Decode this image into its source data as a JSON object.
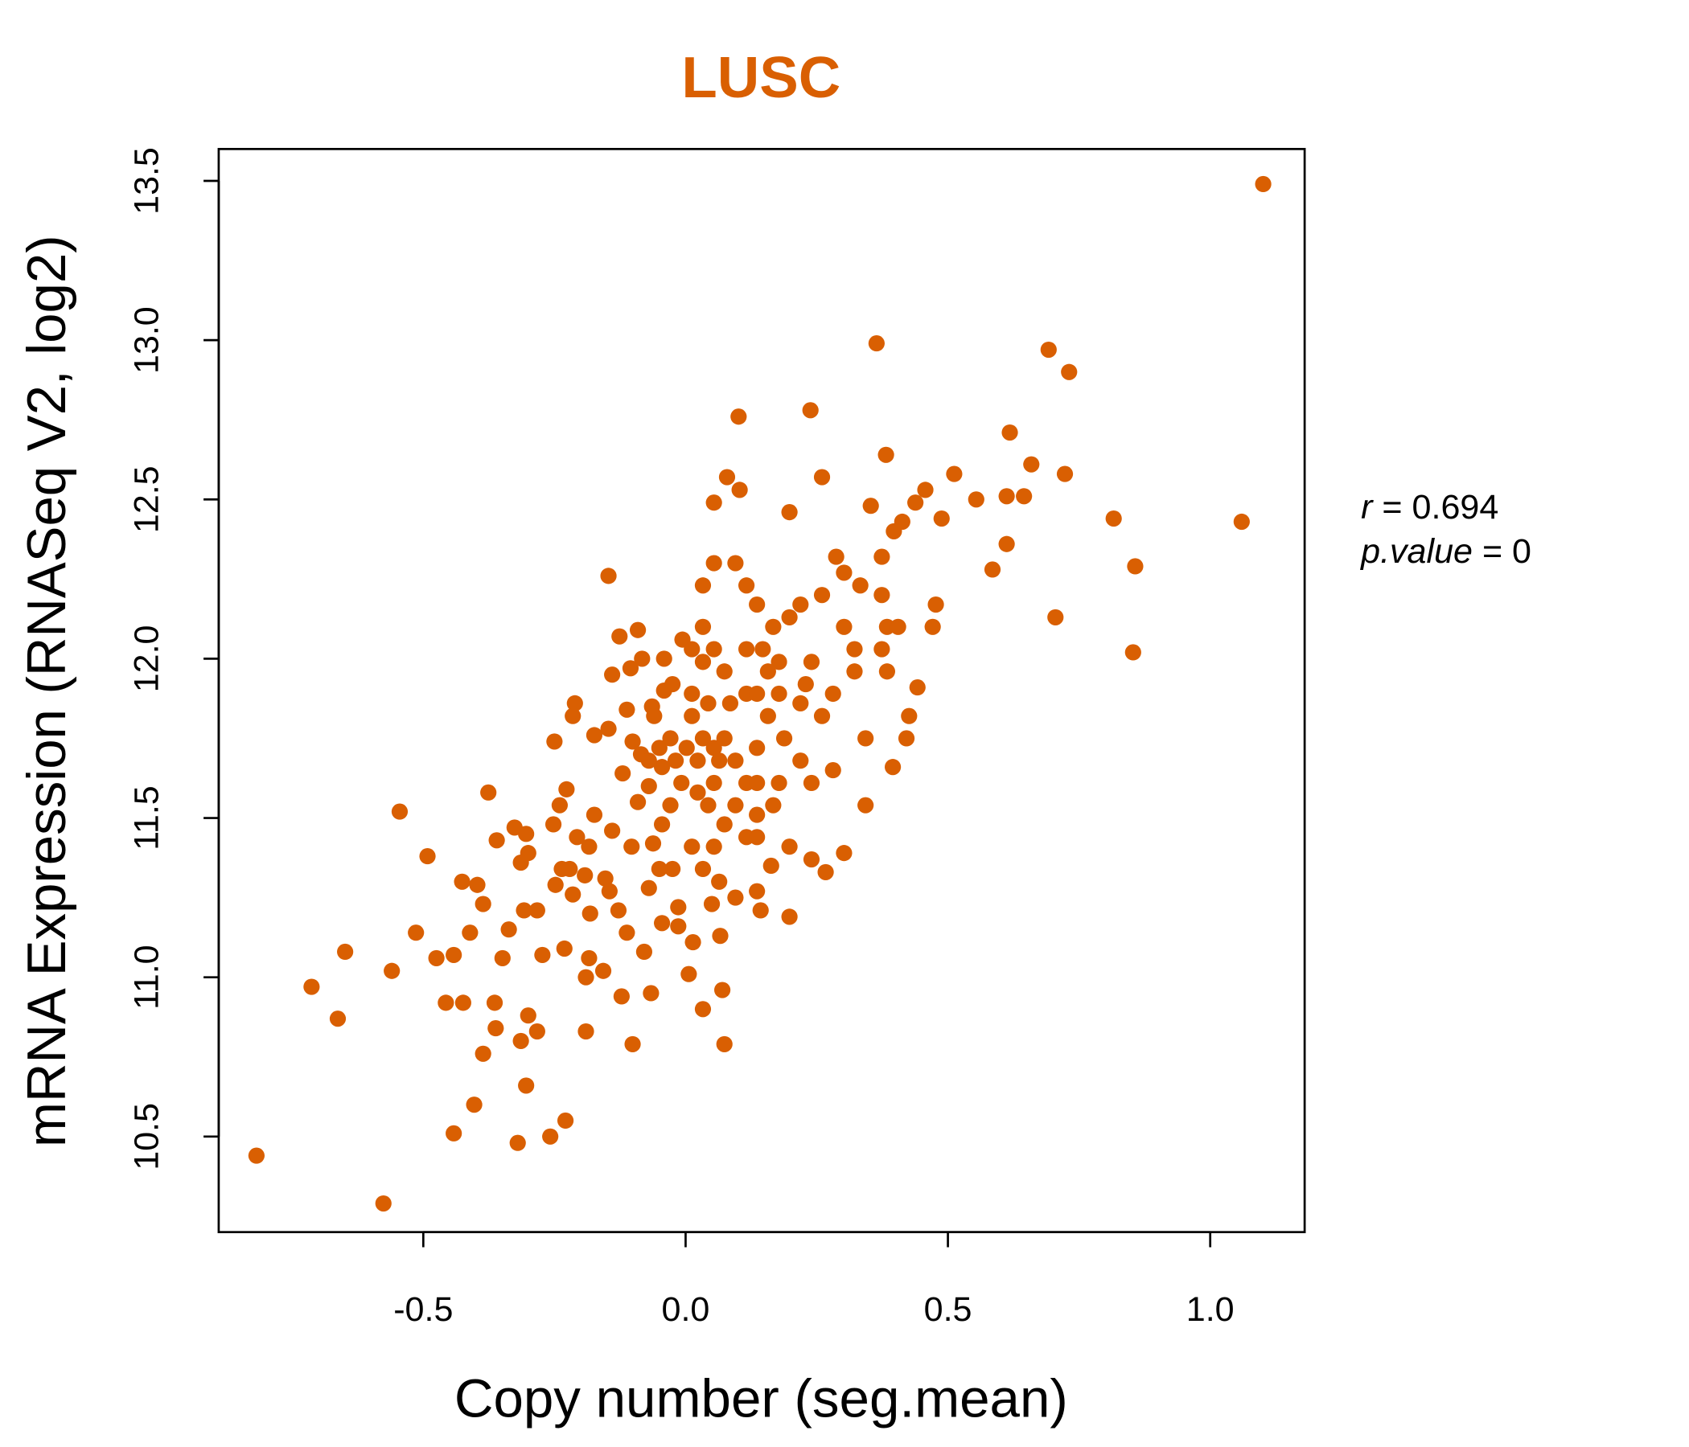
{
  "chart_data": {
    "type": "scatter",
    "title": "LUSC",
    "xlabel": "Copy number (seg.mean)",
    "ylabel": "mRNA Expression (RNASeq V2, log2)",
    "xlim": [
      -0.89,
      1.18
    ],
    "ylim": [
      10.2,
      13.6
    ],
    "xticks": [
      -0.5,
      0.0,
      0.5,
      1.0
    ],
    "xtick_labels": [
      "-0.5",
      "0.0",
      "0.5",
      "1.0"
    ],
    "yticks": [
      10.5,
      11.0,
      11.5,
      12.0,
      12.5,
      13.0,
      13.5
    ],
    "ytick_labels": [
      "10.5",
      "11.0",
      "11.5",
      "12.0",
      "12.5",
      "13.0",
      "13.5"
    ],
    "grid": false,
    "color": "#d95f02",
    "annotations": {
      "r_label": "r",
      "r_value": "= 0.694",
      "p_label": "p.value",
      "p_value": "= 0"
    },
    "points": [
      [
        1.101,
        13.49
      ],
      [
        0.364,
        12.99
      ],
      [
        0.692,
        12.97
      ],
      [
        0.731,
        12.9
      ],
      [
        0.101,
        12.76
      ],
      [
        0.238,
        12.78
      ],
      [
        0.618,
        12.71
      ],
      [
        0.659,
        12.61
      ],
      [
        0.723,
        12.58
      ],
      [
        0.512,
        12.58
      ],
      [
        0.382,
        12.64
      ],
      [
        0.26,
        12.57
      ],
      [
        0.079,
        12.57
      ],
      [
        0.457,
        12.53
      ],
      [
        0.612,
        12.51
      ],
      [
        0.645,
        12.51
      ],
      [
        0.554,
        12.5
      ],
      [
        0.438,
        12.49
      ],
      [
        0.353,
        12.48
      ],
      [
        0.816,
        12.44
      ],
      [
        1.06,
        12.43
      ],
      [
        0.488,
        12.44
      ],
      [
        0.413,
        12.43
      ],
      [
        0.397,
        12.4
      ],
      [
        0.198,
        12.46
      ],
      [
        0.054,
        12.49
      ],
      [
        0.103,
        12.53
      ],
      [
        0.612,
        12.36
      ],
      [
        0.857,
        12.29
      ],
      [
        0.585,
        12.28
      ],
      [
        0.705,
        12.13
      ],
      [
        0.853,
        12.02
      ],
      [
        0.477,
        12.17
      ],
      [
        0.471,
        12.1
      ],
      [
        -0.147,
        12.26
      ],
      [
        0.374,
        12.32
      ],
      [
        0.287,
        12.32
      ],
      [
        -0.818,
        10.44
      ],
      [
        -0.576,
        10.29
      ],
      [
        -0.713,
        10.97
      ],
      [
        -0.663,
        10.87
      ],
      [
        -0.649,
        11.08
      ],
      [
        -0.56,
        11.02
      ],
      [
        -0.545,
        11.52
      ],
      [
        -0.492,
        11.38
      ],
      [
        -0.514,
        11.14
      ],
      [
        -0.475,
        11.06
      ],
      [
        -0.442,
        10.51
      ],
      [
        -0.403,
        10.6
      ],
      [
        -0.32,
        10.48
      ],
      [
        -0.258,
        10.5
      ],
      [
        -0.229,
        10.55
      ],
      [
        -0.304,
        10.66
      ],
      [
        -0.386,
        10.76
      ],
      [
        -0.314,
        10.8
      ],
      [
        -0.283,
        10.83
      ],
      [
        -0.362,
        10.84
      ],
      [
        -0.457,
        10.92
      ],
      [
        -0.424,
        10.92
      ],
      [
        -0.364,
        10.92
      ],
      [
        -0.3,
        10.88
      ],
      [
        -0.19,
        10.83
      ],
      [
        -0.101,
        10.79
      ],
      [
        0.074,
        10.79
      ],
      [
        -0.066,
        10.95
      ],
      [
        -0.122,
        10.94
      ],
      [
        0.033,
        10.9
      ],
      [
        0.07,
        10.96
      ],
      [
        0.006,
        11.01
      ],
      [
        -0.19,
        11.0
      ],
      [
        -0.157,
        11.02
      ],
      [
        -0.442,
        11.07
      ],
      [
        -0.349,
        11.06
      ],
      [
        -0.411,
        11.14
      ],
      [
        -0.337,
        11.15
      ],
      [
        -0.273,
        11.07
      ],
      [
        -0.231,
        11.09
      ],
      [
        -0.184,
        11.06
      ],
      [
        -0.079,
        11.08
      ],
      [
        0.014,
        11.11
      ],
      [
        0.066,
        11.13
      ],
      [
        -0.426,
        11.3
      ],
      [
        -0.397,
        11.29
      ],
      [
        -0.386,
        11.23
      ],
      [
        -0.36,
        11.43
      ],
      [
        -0.376,
        11.58
      ],
      [
        -0.326,
        11.47
      ],
      [
        -0.304,
        11.45
      ],
      [
        -0.3,
        11.39
      ],
      [
        -0.314,
        11.36
      ],
      [
        -0.308,
        11.21
      ],
      [
        -0.283,
        11.21
      ],
      [
        -0.252,
        11.48
      ],
      [
        -0.24,
        11.54
      ],
      [
        -0.227,
        11.59
      ],
      [
        -0.25,
        11.74
      ],
      [
        -0.215,
        11.82
      ],
      [
        -0.211,
        11.86
      ],
      [
        -0.174,
        11.76
      ],
      [
        -0.147,
        11.78
      ],
      [
        -0.126,
        12.07
      ],
      [
        -0.091,
        12.09
      ],
      [
        -0.14,
        11.95
      ],
      [
        -0.105,
        11.97
      ],
      [
        -0.083,
        12.0
      ],
      [
        -0.041,
        12.0
      ],
      [
        -0.006,
        12.06
      ],
      [
        -0.174,
        11.51
      ],
      [
        -0.207,
        11.44
      ],
      [
        -0.184,
        11.41
      ],
      [
        -0.236,
        11.34
      ],
      [
        -0.221,
        11.34
      ],
      [
        -0.248,
        11.29
      ],
      [
        -0.192,
        11.32
      ],
      [
        -0.215,
        11.26
      ],
      [
        -0.182,
        11.2
      ],
      [
        -0.153,
        11.31
      ],
      [
        -0.145,
        11.27
      ],
      [
        -0.128,
        11.21
      ],
      [
        -0.112,
        11.14
      ],
      [
        -0.045,
        11.17
      ],
      [
        -0.014,
        11.16
      ],
      [
        -0.07,
        11.28
      ],
      [
        -0.014,
        11.22
      ],
      [
        -0.14,
        11.46
      ],
      [
        -0.103,
        11.41
      ],
      [
        -0.062,
        11.42
      ],
      [
        -0.045,
        11.48
      ],
      [
        -0.091,
        11.55
      ],
      [
        -0.12,
        11.64
      ],
      [
        -0.085,
        11.7
      ],
      [
        -0.101,
        11.74
      ],
      [
        -0.07,
        11.6
      ],
      [
        -0.045,
        11.66
      ],
      [
        -0.064,
        11.85
      ],
      [
        -0.041,
        11.9
      ],
      [
        -0.025,
        11.92
      ],
      [
        -0.06,
        11.82
      ],
      [
        -0.112,
        11.84
      ],
      [
        0.012,
        11.82
      ],
      [
        0.033,
        11.75
      ],
      [
        0.023,
        11.68
      ],
      [
        0.054,
        11.61
      ],
      [
        -0.008,
        11.61
      ],
      [
        -0.029,
        11.54
      ],
      [
        0.043,
        11.54
      ],
      [
        0.074,
        11.48
      ],
      [
        0.116,
        11.44
      ],
      [
        0.136,
        11.51
      ],
      [
        0.095,
        11.68
      ],
      [
        0.136,
        11.72
      ],
      [
        0.157,
        11.82
      ],
      [
        0.116,
        11.89
      ],
      [
        0.074,
        11.96
      ],
      [
        0.033,
        11.99
      ],
      [
        0.054,
        12.03
      ],
      [
        0.116,
        12.03
      ],
      [
        0.157,
        11.96
      ],
      [
        0.178,
        11.89
      ],
      [
        0.219,
        11.86
      ],
      [
        0.229,
        11.92
      ],
      [
        0.26,
        11.82
      ],
      [
        0.281,
        11.89
      ],
      [
        0.322,
        11.96
      ],
      [
        0.322,
        12.03
      ],
      [
        0.302,
        12.1
      ],
      [
        0.374,
        12.03
      ],
      [
        0.384,
        11.96
      ],
      [
        0.384,
        12.1
      ],
      [
        0.374,
        12.2
      ],
      [
        0.333,
        12.23
      ],
      [
        0.302,
        12.27
      ],
      [
        0.26,
        12.2
      ],
      [
        0.219,
        12.17
      ],
      [
        0.198,
        12.13
      ],
      [
        0.167,
        12.1
      ],
      [
        0.136,
        12.17
      ],
      [
        0.116,
        12.23
      ],
      [
        0.095,
        12.3
      ],
      [
        0.054,
        12.3
      ],
      [
        0.033,
        12.23
      ],
      [
        0.033,
        12.1
      ],
      [
        0.012,
        12.03
      ],
      [
        0.012,
        11.89
      ],
      [
        0.043,
        11.86
      ],
      [
        0.188,
        11.75
      ],
      [
        0.219,
        11.68
      ],
      [
        0.24,
        11.61
      ],
      [
        0.281,
        11.65
      ],
      [
        0.343,
        11.75
      ],
      [
        0.343,
        11.54
      ],
      [
        0.395,
        11.66
      ],
      [
        0.421,
        11.75
      ],
      [
        0.426,
        11.82
      ],
      [
        0.442,
        11.91
      ],
      [
        0.405,
        12.1
      ],
      [
        0.178,
        11.61
      ],
      [
        0.167,
        11.54
      ],
      [
        0.136,
        11.44
      ],
      [
        0.198,
        11.41
      ],
      [
        0.24,
        11.37
      ],
      [
        0.302,
        11.39
      ],
      [
        0.267,
        11.33
      ],
      [
        0.163,
        11.35
      ],
      [
        0.136,
        11.27
      ],
      [
        0.143,
        11.21
      ],
      [
        0.198,
        11.19
      ],
      [
        0.095,
        11.25
      ],
      [
        0.064,
        11.3
      ],
      [
        0.05,
        11.23
      ],
      [
        0.033,
        11.34
      ],
      [
        0.012,
        11.41
      ],
      [
        -0.025,
        11.34
      ],
      [
        -0.05,
        11.34
      ],
      [
        0.054,
        11.41
      ],
      [
        -0.029,
        11.75
      ],
      [
        -0.019,
        11.68
      ],
      [
        0.002,
        11.72
      ],
      [
        -0.05,
        11.72
      ],
      [
        -0.07,
        11.68
      ],
      [
        0.054,
        11.72
      ],
      [
        0.074,
        11.75
      ],
      [
        0.064,
        11.68
      ],
      [
        0.023,
        11.58
      ],
      [
        0.095,
        11.54
      ],
      [
        0.116,
        11.61
      ],
      [
        0.136,
        11.61
      ],
      [
        0.085,
        11.86
      ],
      [
        0.136,
        11.89
      ],
      [
        0.178,
        11.99
      ],
      [
        0.24,
        11.99
      ],
      [
        0.147,
        12.03
      ]
    ]
  }
}
